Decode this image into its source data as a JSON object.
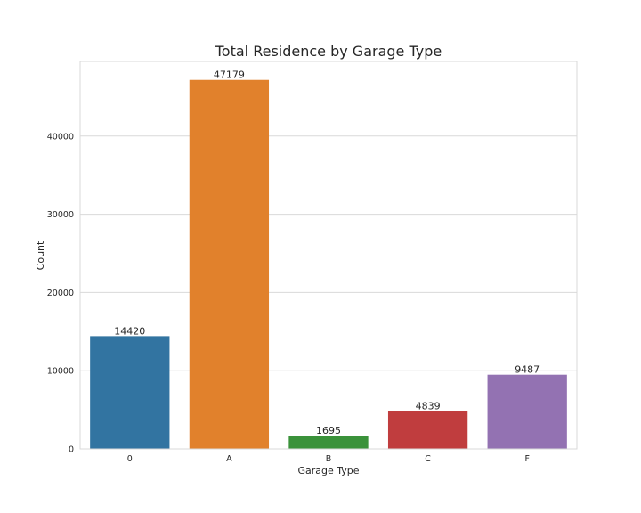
{
  "chart_data": {
    "type": "bar",
    "title": "Total Residence by Garage Type",
    "xlabel": "Garage Type",
    "ylabel": "Count",
    "categories": [
      "0",
      "A",
      "B",
      "C",
      "F"
    ],
    "values": [
      14420,
      47179,
      1695,
      4839,
      9487
    ],
    "value_labels": [
      "14420",
      "47179",
      "1695",
      "4839",
      "9487"
    ],
    "colors": [
      "#3274a1",
      "#e1812c",
      "#3a923a",
      "#c03d3e",
      "#9372b2"
    ],
    "ylim": [
      0,
      49540
    ],
    "yticks": [
      0,
      10000,
      20000,
      30000,
      40000
    ],
    "ytick_labels": [
      "0",
      "10000",
      "20000",
      "30000",
      "40000"
    ],
    "grid": true,
    "legend": "none"
  }
}
